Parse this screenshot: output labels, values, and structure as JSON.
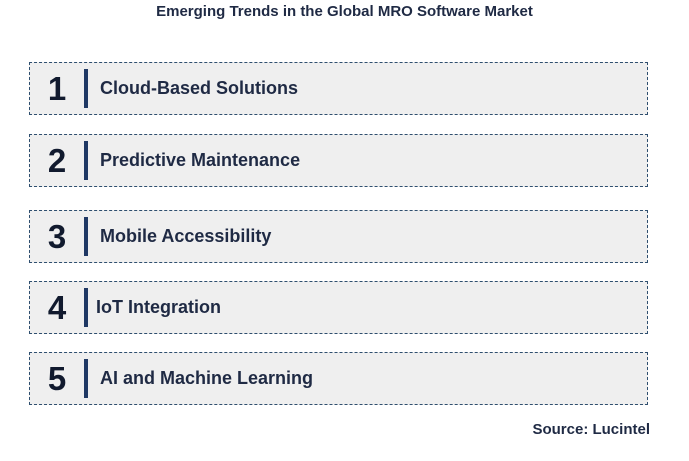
{
  "title": "Emerging Trends in the Global MRO Software Market",
  "items": [
    {
      "number": "1",
      "label": "Cloud-Based Solutions"
    },
    {
      "number": "2",
      "label": "Predictive Maintenance"
    },
    {
      "number": "3",
      "label": "Mobile Accessibility"
    },
    {
      "number": "4",
      "label": "IoT Integration"
    },
    {
      "number": "5",
      "label": "AI and Machine Learning"
    }
  ],
  "source": "Source: Lucintel",
  "colors": {
    "accent": "#1f3864",
    "box_fill": "#efefef",
    "text": "#1f2a44"
  }
}
